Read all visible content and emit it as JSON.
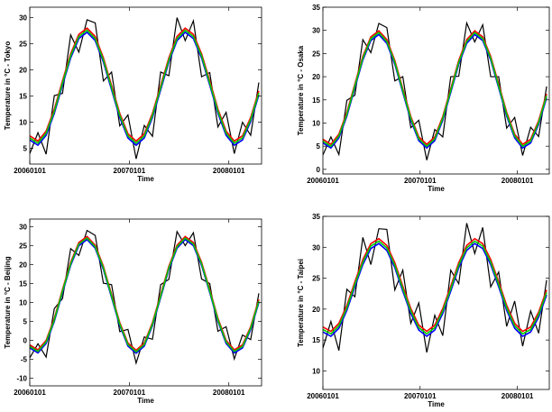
{
  "chart_data": [
    {
      "type": "line",
      "y_label": "Temperature in °C - Tokyo",
      "x_label": "Time",
      "x": [
        0,
        30,
        60,
        90,
        120,
        150,
        180,
        210,
        240,
        270,
        300,
        330,
        360,
        390,
        420,
        450,
        480,
        510,
        540,
        570,
        600,
        630,
        660,
        690,
        720,
        750,
        780,
        810,
        840
      ],
      "xlim": [
        0,
        850
      ],
      "xticks": [
        {
          "value": 0,
          "label": "20060101"
        },
        {
          "value": 365,
          "label": "20070101"
        },
        {
          "value": 730,
          "label": "20080101"
        }
      ],
      "ylim": [
        2,
        32
      ],
      "yticks": [
        5,
        10,
        15,
        20,
        25,
        30
      ],
      "grid": false,
      "series": [
        {
          "color": "#000000",
          "values": [
            4.0,
            8.0,
            3.9,
            15.1,
            15.5,
            26.7,
            23.4,
            29.6,
            29.0,
            17.9,
            19.6,
            9.3,
            11.4,
            3.0,
            9.4,
            7.3,
            19.6,
            18.9,
            30.0,
            25.6,
            29.4,
            18.7,
            19.5,
            9.1,
            11.9,
            4.0,
            10.0,
            7.5,
            17.6
          ]
        },
        {
          "color": "#ff0000",
          "values": [
            7.4,
            6.4,
            8.3,
            12.5,
            17.9,
            23.1,
            26.8,
            28.0,
            26.4,
            22.3,
            17.0,
            11.7,
            7.8,
            6.4,
            7.8,
            11.7,
            17.0,
            22.3,
            26.4,
            28.0,
            26.8,
            23.1,
            17.9,
            12.5,
            8.3,
            6.4,
            7.4,
            10.9,
            16.0
          ]
        },
        {
          "color": "#0000ff",
          "values": [
            6.6,
            5.6,
            7.5,
            11.7,
            17.1,
            22.3,
            26.0,
            27.2,
            25.6,
            21.5,
            16.2,
            10.9,
            7.0,
            5.6,
            7.0,
            10.9,
            16.2,
            21.5,
            25.6,
            27.2,
            26.0,
            22.3,
            17.1,
            11.7,
            7.5,
            5.6,
            6.6,
            10.1,
            15.2
          ]
        },
        {
          "color": "#00cc00",
          "values": [
            7.0,
            6.0,
            7.9,
            12.1,
            17.5,
            22.7,
            26.4,
            27.6,
            26.0,
            21.9,
            16.6,
            11.3,
            7.4,
            6.0,
            7.4,
            11.3,
            16.6,
            21.9,
            26.0,
            27.6,
            26.4,
            22.7,
            17.5,
            12.1,
            7.9,
            6.0,
            7.0,
            10.5,
            15.6
          ]
        }
      ]
    },
    {
      "type": "line",
      "y_label": "Temperature in °C - Osaka",
      "x_label": "Time",
      "x": [
        0,
        30,
        60,
        90,
        120,
        150,
        180,
        210,
        240,
        270,
        300,
        330,
        360,
        390,
        420,
        450,
        480,
        510,
        540,
        570,
        600,
        630,
        660,
        690,
        720,
        750,
        780,
        810,
        840
      ],
      "xlim": [
        0,
        850
      ],
      "xticks": [
        {
          "value": 0,
          "label": "20060101"
        },
        {
          "value": 365,
          "label": "20070101"
        },
        {
          "value": 730,
          "label": "20080101"
        }
      ],
      "ylim": [
        -1,
        35
      ],
      "yticks": [
        0,
        5,
        10,
        15,
        20,
        25,
        30,
        35
      ],
      "grid": false,
      "series": [
        {
          "color": "#000000",
          "values": [
            3.1,
            7.0,
            3.2,
            14.9,
            16.0,
            28.0,
            25.2,
            31.5,
            30.6,
            19.1,
            20.0,
            9.0,
            10.6,
            2.0,
            8.6,
            7.0,
            20.0,
            20.1,
            31.6,
            27.5,
            31.2,
            20.0,
            20.0,
            8.9,
            11.2,
            3.0,
            9.1,
            7.1,
            17.9
          ]
        },
        {
          "color": "#ff0000",
          "values": [
            6.5,
            5.4,
            7.6,
            12.3,
            18.4,
            24.4,
            28.6,
            29.9,
            28.0,
            23.5,
            17.4,
            11.4,
            7.0,
            5.4,
            7.0,
            11.4,
            17.4,
            23.5,
            28.0,
            29.9,
            28.6,
            24.4,
            18.4,
            12.3,
            7.6,
            5.4,
            6.5,
            10.5,
            16.3
          ]
        },
        {
          "color": "#0000ff",
          "values": [
            5.7,
            4.6,
            6.8,
            11.5,
            17.6,
            23.6,
            27.8,
            29.1,
            27.2,
            22.7,
            16.6,
            10.6,
            6.2,
            4.6,
            6.2,
            10.6,
            16.6,
            22.7,
            27.2,
            29.1,
            27.8,
            23.6,
            17.6,
            11.5,
            6.8,
            4.6,
            5.7,
            9.7,
            15.5
          ]
        },
        {
          "color": "#00cc00",
          "values": [
            6.1,
            5.0,
            7.2,
            11.9,
            18.0,
            24.0,
            28.2,
            29.5,
            27.6,
            23.1,
            17.0,
            11.0,
            6.6,
            5.0,
            6.6,
            11.0,
            17.0,
            23.1,
            27.6,
            29.5,
            28.2,
            24.0,
            18.0,
            11.9,
            7.2,
            5.0,
            6.1,
            10.1,
            15.9
          ]
        }
      ]
    },
    {
      "type": "line",
      "y_label": "Temperature in °C - Beijing",
      "x_label": "Time",
      "x": [
        0,
        30,
        60,
        90,
        120,
        150,
        180,
        210,
        240,
        270,
        300,
        330,
        360,
        390,
        420,
        450,
        480,
        510,
        540,
        570,
        600,
        630,
        660,
        690,
        720,
        750,
        780,
        810,
        840
      ],
      "xlim": [
        0,
        850
      ],
      "xticks": [
        {
          "value": 0,
          "label": "20060101"
        },
        {
          "value": 365,
          "label": "20070101"
        },
        {
          "value": 730,
          "label": "20080101"
        }
      ],
      "ylim": [
        -12,
        32
      ],
      "yticks": [
        -10,
        -5,
        0,
        5,
        10,
        15,
        20,
        25,
        30
      ],
      "grid": false,
      "series": [
        {
          "color": "#000000",
          "values": [
            -4.6,
            -0.9,
            -4.4,
            8.4,
            11.0,
            24.2,
            22.4,
            29.0,
            27.7,
            15.1,
            14.7,
            2.3,
            2.9,
            -6.0,
            0.9,
            0.3,
            14.7,
            16.1,
            28.7,
            25.0,
            28.4,
            16.2,
            15.0,
            2.4,
            3.6,
            -4.9,
            1.4,
            0.2,
            12.4
          ]
        },
        {
          "color": "#ff0000",
          "values": [
            -1.2,
            -2.5,
            0.0,
            5.8,
            13.4,
            20.6,
            25.8,
            27.4,
            25.1,
            19.5,
            12.1,
            4.7,
            -0.7,
            -2.6,
            -0.7,
            4.7,
            12.1,
            19.5,
            25.1,
            27.4,
            25.8,
            20.6,
            13.4,
            5.8,
            0.0,
            -2.5,
            -1.2,
            3.6,
            10.8
          ]
        },
        {
          "color": "#0000ff",
          "values": [
            -2.0,
            -3.3,
            -0.8,
            5.0,
            12.6,
            19.8,
            25.0,
            26.6,
            24.3,
            18.7,
            11.3,
            3.9,
            -1.5,
            -3.4,
            -1.5,
            3.9,
            11.3,
            18.7,
            24.3,
            26.6,
            25.0,
            19.8,
            12.6,
            5.0,
            -0.8,
            -3.3,
            -2.0,
            2.8,
            10.0
          ]
        },
        {
          "color": "#00cc00",
          "values": [
            -1.6,
            -2.9,
            -0.4,
            5.4,
            13.0,
            20.2,
            25.4,
            27.0,
            24.7,
            19.1,
            11.7,
            4.3,
            -1.1,
            -3.0,
            -1.1,
            4.3,
            11.7,
            19.1,
            24.7,
            27.0,
            25.4,
            20.2,
            13.0,
            5.4,
            -0.4,
            -2.9,
            -1.6,
            3.2,
            10.4
          ]
        }
      ]
    },
    {
      "type": "line",
      "y_label": "Temperature in °C - Taipei",
      "x_label": "Time",
      "x": [
        0,
        30,
        60,
        90,
        120,
        150,
        180,
        210,
        240,
        270,
        300,
        330,
        360,
        390,
        420,
        450,
        480,
        510,
        540,
        570,
        600,
        630,
        660,
        690,
        720,
        750,
        780,
        810,
        840
      ],
      "xlim": [
        0,
        850
      ],
      "xticks": [
        {
          "value": 0,
          "label": "20060101"
        },
        {
          "value": 365,
          "label": "20070101"
        },
        {
          "value": 730,
          "label": "20080101"
        }
      ],
      "ylim": [
        7,
        35
      ],
      "yticks": [
        10,
        15,
        20,
        25,
        30,
        35
      ],
      "grid": false,
      "series": [
        {
          "color": "#000000",
          "values": [
            13.7,
            18.0,
            13.3,
            23.2,
            22.0,
            31.6,
            27.2,
            33.0,
            32.9,
            23.1,
            26.3,
            17.7,
            21.0,
            13.0,
            19.0,
            15.7,
            26.3,
            24.1,
            33.9,
            29.0,
            33.2,
            23.6,
            26.0,
            17.2,
            21.3,
            14.0,
            19.7,
            16.1,
            24.7
          ]
        },
        {
          "color": "#ff0000",
          "values": [
            17.1,
            16.4,
            17.7,
            20.6,
            24.4,
            28.0,
            30.6,
            31.4,
            30.3,
            27.5,
            23.7,
            20.1,
            17.4,
            16.4,
            17.4,
            20.1,
            23.7,
            27.5,
            30.3,
            31.4,
            30.6,
            28.0,
            24.4,
            20.6,
            17.7,
            16.4,
            17.1,
            19.5,
            23.1
          ]
        },
        {
          "color": "#0000ff",
          "values": [
            16.3,
            15.6,
            16.9,
            19.8,
            23.6,
            27.2,
            29.8,
            30.6,
            29.5,
            26.7,
            22.9,
            19.3,
            16.6,
            15.6,
            16.6,
            19.3,
            22.9,
            26.7,
            29.5,
            30.6,
            29.8,
            27.2,
            23.6,
            19.8,
            16.9,
            15.6,
            16.3,
            18.7,
            22.3
          ]
        },
        {
          "color": "#00cc00",
          "values": [
            16.7,
            16.0,
            17.3,
            20.2,
            24.0,
            27.6,
            30.2,
            31.0,
            29.9,
            27.1,
            23.3,
            19.7,
            17.0,
            16.0,
            17.0,
            19.7,
            23.3,
            27.1,
            29.9,
            31.0,
            30.2,
            27.6,
            24.0,
            20.2,
            17.3,
            16.0,
            16.7,
            19.1,
            22.7
          ]
        }
      ]
    }
  ]
}
